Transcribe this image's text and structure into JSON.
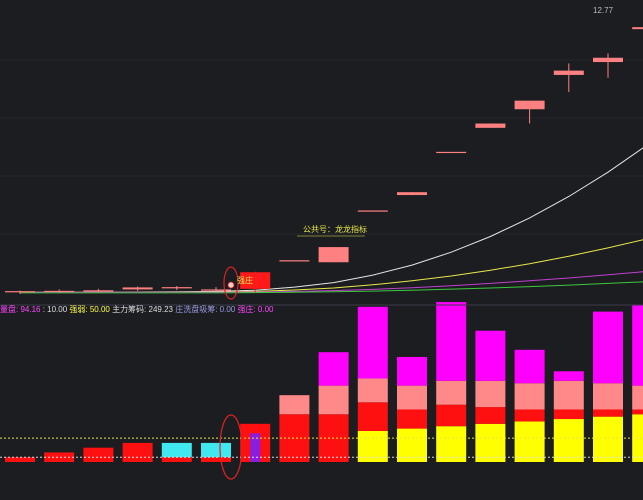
{
  "chart_data": [
    {
      "type": "candlestick",
      "price_label": "12.77",
      "annotation": "公共号：龙龙指标",
      "marker_text": "强庄",
      "candles": [
        {
          "o": 3.5,
          "h": 3.56,
          "l": 3.44,
          "c": 3.54
        },
        {
          "o": 3.52,
          "h": 3.6,
          "l": 3.48,
          "c": 3.55
        },
        {
          "o": 3.55,
          "h": 3.62,
          "l": 3.5,
          "c": 3.57
        },
        {
          "o": 3.6,
          "h": 3.7,
          "l": 3.55,
          "c": 3.67
        },
        {
          "o": 3.65,
          "h": 3.72,
          "l": 3.58,
          "c": 3.68
        },
        {
          "o": 3.58,
          "h": 3.68,
          "l": 3.55,
          "c": 3.6
        },
        {
          "o": 3.62,
          "h": 4.22,
          "l": 3.5,
          "c": 4.2
        },
        {
          "o": 4.62,
          "h": 4.62,
          "l": 4.62,
          "c": 4.62
        },
        {
          "o": 4.55,
          "h": 5.08,
          "l": 4.55,
          "c": 5.08
        },
        {
          "o": 6.36,
          "h": 6.36,
          "l": 6.36,
          "c": 6.36
        },
        {
          "o": 6.9,
          "h": 7.0,
          "l": 6.9,
          "c": 7.0
        },
        {
          "o": 8.41,
          "h": 8.41,
          "l": 8.41,
          "c": 8.41
        },
        {
          "o": 9.25,
          "h": 9.4,
          "l": 9.25,
          "c": 9.4
        },
        {
          "o": 9.9,
          "h": 10.2,
          "l": 9.4,
          "c": 10.2
        },
        {
          "o": 11.25,
          "h": 11.5,
          "l": 10.5,
          "c": 11.1
        },
        {
          "o": 11.55,
          "h": 11.85,
          "l": 11.0,
          "c": 11.7
        },
        {
          "o": 12.7,
          "h": 13.1,
          "l": 12.1,
          "c": 12.77
        }
      ],
      "series": [
        {
          "color": "#e6e6e6",
          "values": [
            3.5,
            3.5,
            3.5,
            3.51,
            3.52,
            3.53,
            3.57,
            3.68,
            3.84,
            4.1,
            4.45,
            4.9,
            5.45,
            6.1,
            6.85,
            7.7,
            8.65
          ]
        },
        {
          "color": "#e8e84a",
          "values": [
            3.5,
            3.5,
            3.5,
            3.5,
            3.51,
            3.51,
            3.53,
            3.58,
            3.65,
            3.76,
            3.9,
            4.07,
            4.27,
            4.5,
            4.76,
            5.05,
            5.37
          ]
        },
        {
          "color": "#c040d0",
          "values": [
            3.5,
            3.5,
            3.5,
            3.5,
            3.5,
            3.5,
            3.51,
            3.53,
            3.56,
            3.6,
            3.66,
            3.73,
            3.81,
            3.9,
            4.0,
            4.11,
            4.23
          ]
        },
        {
          "color": "#3cc83c",
          "values": [
            3.48,
            3.48,
            3.48,
            3.48,
            3.48,
            3.48,
            3.49,
            3.5,
            3.52,
            3.54,
            3.57,
            3.61,
            3.65,
            3.7,
            3.75,
            3.81,
            3.87
          ]
        }
      ],
      "ylim": [
        3.3,
        13.3
      ]
    },
    {
      "type": "bar",
      "legend": [
        {
          "label": "量盘: 94.16",
          "color": "#ff44ff"
        },
        {
          "label": ": 10.00",
          "color": "#dddddd"
        },
        {
          "label": "强弱: 50.00",
          "color": "#ffff44"
        },
        {
          "label": "主力筹码: 249.23",
          "color": "#dddddd"
        },
        {
          "label": "庄洗盘吸筹: 0.00",
          "color": "#9999dd"
        },
        {
          "label": "强庄: 0.00",
          "color": "#ff44ff"
        }
      ],
      "reference_lines": [
        {
          "value": 10,
          "color": "#e8e84a"
        },
        {
          "value": 2,
          "color": "#dddddd"
        }
      ],
      "bars": [
        {
          "red": 2,
          "salmon": 0,
          "yellow": 0,
          "magenta": 0,
          "cyan": 0,
          "purple": 0
        },
        {
          "red": 4,
          "salmon": 0,
          "yellow": 0,
          "magenta": 0,
          "cyan": 0,
          "purple": 0
        },
        {
          "red": 6,
          "salmon": 0,
          "yellow": 0,
          "magenta": 0,
          "cyan": 0,
          "purple": 0
        },
        {
          "red": 8,
          "salmon": 0,
          "yellow": 0,
          "magenta": 0,
          "cyan": 0,
          "purple": 0
        },
        {
          "red": 2,
          "salmon": 0,
          "yellow": 0,
          "magenta": 0,
          "cyan": 6,
          "purple": 0
        },
        {
          "red": 2,
          "salmon": 0,
          "yellow": 0,
          "magenta": 0,
          "cyan": 6,
          "purple": 0
        },
        {
          "red": 16,
          "salmon": 0,
          "yellow": 0,
          "magenta": 0,
          "cyan": 0,
          "purple": 12
        },
        {
          "red": 20,
          "salmon": 8,
          "yellow": 0,
          "magenta": 0,
          "cyan": 0,
          "purple": 0
        },
        {
          "red": 20,
          "salmon": 12,
          "yellow": 0,
          "magenta": 14,
          "cyan": 0,
          "purple": 0
        },
        {
          "red": 12,
          "salmon": 10,
          "yellow": 13,
          "magenta": 30,
          "cyan": 0,
          "purple": 0
        },
        {
          "red": 8,
          "salmon": 10,
          "yellow": 14,
          "magenta": 12,
          "cyan": 0,
          "purple": 0
        },
        {
          "red": 9,
          "salmon": 10,
          "yellow": 15,
          "magenta": 33,
          "cyan": 0,
          "purple": 0
        },
        {
          "red": 7,
          "salmon": 11,
          "yellow": 16,
          "magenta": 21,
          "cyan": 0,
          "purple": 0
        },
        {
          "red": 5,
          "salmon": 11,
          "yellow": 17,
          "magenta": 14,
          "cyan": 0,
          "purple": 0
        },
        {
          "red": 4,
          "salmon": 12,
          "yellow": 18,
          "magenta": 4,
          "cyan": 0,
          "purple": 0
        },
        {
          "red": 3,
          "salmon": 11,
          "yellow": 19,
          "magenta": 30,
          "cyan": 0,
          "purple": 0
        },
        {
          "red": 2,
          "salmon": 10,
          "yellow": 20,
          "magenta": 34,
          "cyan": 0,
          "purple": 0
        }
      ],
      "ylim": [
        0,
        62
      ]
    }
  ]
}
